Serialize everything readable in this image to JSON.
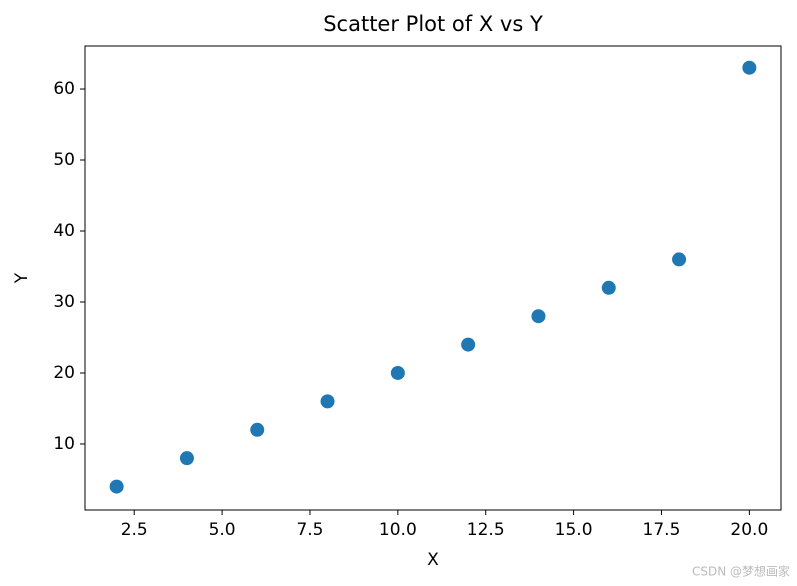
{
  "chart_data": {
    "type": "scatter",
    "title": "Scatter Plot of X vs Y",
    "x_label": "X",
    "y_label": "Y",
    "x": [
      2,
      4,
      6,
      8,
      10,
      12,
      14,
      16,
      18,
      20
    ],
    "values": [
      4,
      8,
      12,
      16,
      20,
      24,
      28,
      32,
      36,
      63
    ],
    "color": "#1f77b4",
    "xlim": [
      1.1,
      20.9
    ],
    "xticks": [
      {
        "value": 2.5,
        "label": "2.5"
      },
      {
        "value": 5,
        "label": "5.0"
      },
      {
        "value": 7.5,
        "label": "7.5"
      },
      {
        "value": 10,
        "label": "10.0"
      },
      {
        "value": 12.5,
        "label": "12.5"
      },
      {
        "value": 15,
        "label": "15.0"
      },
      {
        "value": 17.5,
        "label": "17.5"
      },
      {
        "value": 20,
        "label": "20.0"
      }
    ],
    "ylim": [
      0.7,
      66.06
    ],
    "yticks": [
      10,
      20,
      30,
      40,
      50,
      60
    ],
    "grid": false
  },
  "watermark": "CSDN @梦想画家"
}
